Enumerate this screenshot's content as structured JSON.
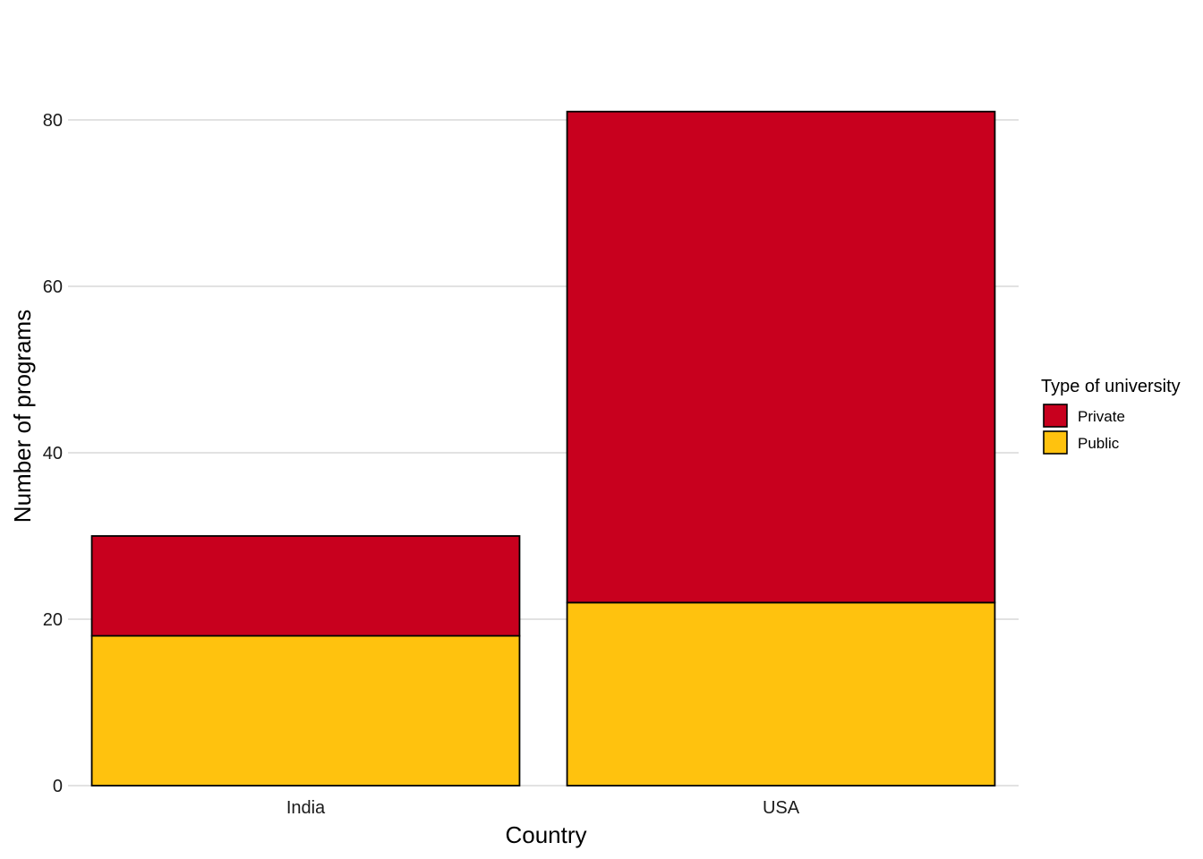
{
  "chart_data": {
    "type": "bar",
    "stacked": true,
    "categories": [
      "India",
      "USA"
    ],
    "series": [
      {
        "name": "Public",
        "values": [
          18,
          22
        ],
        "color": "#FFC20E"
      },
      {
        "name": "Private",
        "values": [
          12,
          59
        ],
        "color": "#C8001E"
      }
    ],
    "title": "",
    "xlabel": "Country",
    "ylabel": "Number of programs",
    "ylim": [
      0,
      88
    ],
    "yticks": [
      0,
      20,
      40,
      60,
      80
    ],
    "grid": true,
    "legend": {
      "title": "Type of university",
      "placement": "right",
      "entries": [
        {
          "label": "Private",
          "color": "#C8001E"
        },
        {
          "label": "Public",
          "color": "#FFC20E"
        }
      ]
    }
  }
}
